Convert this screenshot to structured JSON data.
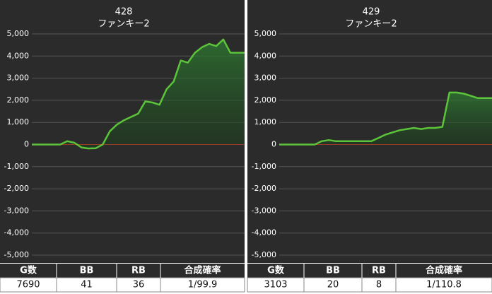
{
  "chart_data": [
    {
      "type": "line",
      "title": "428",
      "subtitle": "ファンキー2",
      "color": "#5cc43a",
      "zero_line_color": "#c0392b",
      "grid": true,
      "values": [
        0,
        0,
        0,
        0,
        0,
        150,
        80,
        -130,
        -180,
        -170,
        0,
        600,
        900,
        1100,
        1250,
        1400,
        1950,
        1900,
        1800,
        2500,
        2850,
        3800,
        3700,
        4150,
        4400,
        4550,
        4450,
        4750,
        4150,
        4150,
        4150
      ],
      "ylim": [
        -5000,
        5000
      ],
      "yticks": [
        {
          "value": 5000,
          "label": "5,000"
        },
        {
          "value": 4000,
          "label": "4,000"
        },
        {
          "value": 3000,
          "label": "3,000"
        },
        {
          "value": 2000,
          "label": "2,000"
        },
        {
          "value": 1000,
          "label": "1,000"
        },
        0,
        {
          "value": -1000,
          "label": "-1,000"
        },
        {
          "value": -2000,
          "label": "-2,000"
        },
        {
          "value": -3000,
          "label": "-3,000"
        },
        {
          "value": -4000,
          "label": "-4,000"
        },
        {
          "value": -5000,
          "label": "-5,000"
        }
      ]
    },
    {
      "type": "line",
      "title": "429",
      "subtitle": "ファンキー2",
      "color": "#5cc43a",
      "zero_line_color": "#c0392b",
      "grid": true,
      "values": [
        0,
        0,
        0,
        0,
        0,
        0,
        150,
        200,
        150,
        150,
        150,
        150,
        150,
        150,
        300,
        450,
        550,
        650,
        700,
        750,
        700,
        750,
        750,
        800,
        2350,
        2350,
        2300,
        2200,
        2100,
        2100,
        2100
      ],
      "ylim": [
        -5000,
        5000
      ],
      "yticks": [
        {
          "value": 5000,
          "label": "5,000"
        },
        {
          "value": 4000,
          "label": "4,000"
        },
        {
          "value": 3000,
          "label": "3,000"
        },
        {
          "value": 2000,
          "label": "2,000"
        },
        {
          "value": 1000,
          "label": "1,000"
        },
        0,
        {
          "value": -1000,
          "label": "-1,000"
        },
        {
          "value": -2000,
          "label": "-2,000"
        },
        {
          "value": -3000,
          "label": "-3,000"
        },
        {
          "value": -4000,
          "label": "-4,000"
        },
        {
          "value": -5000,
          "label": "-5,000"
        }
      ]
    }
  ],
  "tables": [
    {
      "header": [
        "G数",
        "BB",
        "RB",
        "合成確率"
      ],
      "row": [
        7690,
        41,
        36,
        "1/99.9"
      ]
    },
    {
      "header": [
        "G数",
        "BB",
        "RB",
        "合成確率"
      ],
      "row": [
        3103,
        20,
        8,
        "1/110.8"
      ]
    }
  ]
}
